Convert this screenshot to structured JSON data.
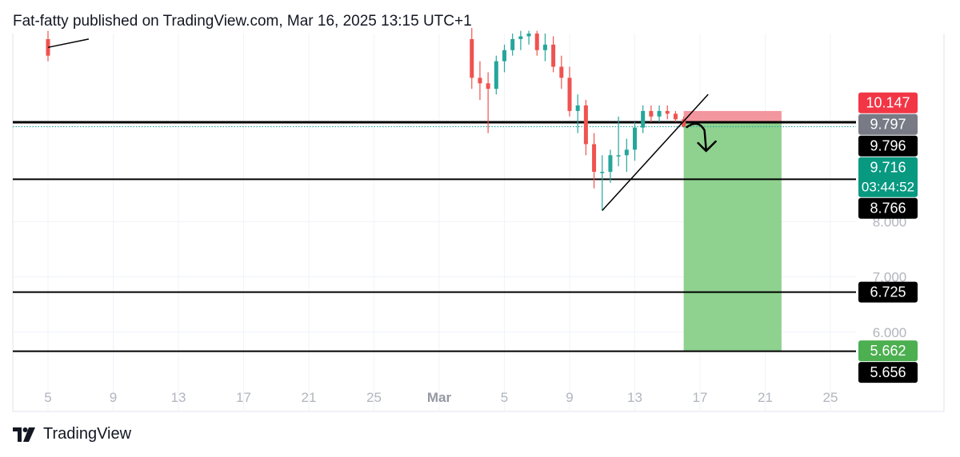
{
  "header": {
    "text": "Fat-fatty published on TradingView.com, Mar 16, 2025 13:15 UTC+1"
  },
  "footer": {
    "brand": "TradingView",
    "logo_icon": "tradingview-logo-icon"
  },
  "colors": {
    "up": "#26a69a",
    "down": "#ef5350",
    "profit_zone": "#8fd18f",
    "stop_zone": "#f28b94",
    "label_dark": "#000000",
    "label_red": "#f23645",
    "label_gray": "#787b86",
    "label_teal": "#089981",
    "label_green": "#4caf50",
    "axis_text": "#b2b5be"
  },
  "chart_data": {
    "type": "candlestick",
    "x_axis": {
      "tick_labels": [
        "5",
        "9",
        "13",
        "17",
        "21",
        "25",
        "Mar",
        "5",
        "9",
        "13",
        "17",
        "21",
        "25"
      ],
      "bold_labels": [
        "Mar"
      ],
      "start": "2025-02-05",
      "end": "2025-03-25"
    },
    "y_axis": {
      "tick_labels": [
        "8.000",
        "7.000",
        "6.000"
      ],
      "ylim": [
        5.0,
        11.4
      ],
      "grid": true
    },
    "price_labels": [
      {
        "value": "10.147",
        "style": "red"
      },
      {
        "value": "9.797",
        "style": "gray"
      },
      {
        "value": "9.796",
        "style": "dark"
      },
      {
        "value": "9.716",
        "sub": "03:44:52",
        "style": "teal"
      },
      {
        "value": "8.766",
        "style": "dark"
      },
      {
        "value": "6.725",
        "style": "dark"
      },
      {
        "value": "5.662",
        "style": "green"
      },
      {
        "value": "5.656",
        "style": "dark"
      }
    ],
    "horizontal_lines": [
      9.796,
      8.766,
      6.725,
      5.656
    ],
    "current_price": 9.716,
    "candles": [
      {
        "t": "2025-02-05",
        "o": 11.3,
        "h": 11.45,
        "l": 10.9,
        "c": 11.0
      },
      {
        "t": "2025-03-03",
        "o": 11.3,
        "h": 11.5,
        "l": 10.4,
        "c": 10.6
      },
      {
        "t": "2025-03-03T12",
        "o": 10.6,
        "h": 10.9,
        "l": 10.2,
        "c": 10.5
      },
      {
        "t": "2025-03-04",
        "o": 10.5,
        "h": 10.7,
        "l": 9.6,
        "c": 10.4
      },
      {
        "t": "2025-03-04T12",
        "o": 10.4,
        "h": 11.0,
        "l": 10.3,
        "c": 10.9
      },
      {
        "t": "2025-03-05",
        "o": 10.9,
        "h": 11.2,
        "l": 10.7,
        "c": 11.1
      },
      {
        "t": "2025-03-05T12",
        "o": 11.1,
        "h": 11.4,
        "l": 11.0,
        "c": 11.3
      },
      {
        "t": "2025-03-06",
        "o": 11.3,
        "h": 11.45,
        "l": 11.1,
        "c": 11.35
      },
      {
        "t": "2025-03-06T12",
        "o": 11.35,
        "h": 11.45,
        "l": 11.2,
        "c": 11.4
      },
      {
        "t": "2025-03-07",
        "o": 11.4,
        "h": 11.45,
        "l": 11.0,
        "c": 11.1
      },
      {
        "t": "2025-03-07T12",
        "o": 11.1,
        "h": 11.4,
        "l": 10.9,
        "c": 11.2
      },
      {
        "t": "2025-03-08",
        "o": 11.2,
        "h": 11.35,
        "l": 10.7,
        "c": 10.8
      },
      {
        "t": "2025-03-08T12",
        "o": 10.8,
        "h": 11.0,
        "l": 10.4,
        "c": 10.6
      },
      {
        "t": "2025-03-09",
        "o": 10.6,
        "h": 10.8,
        "l": 9.9,
        "c": 10.0
      },
      {
        "t": "2025-03-09T12",
        "o": 10.0,
        "h": 10.3,
        "l": 9.6,
        "c": 10.1
      },
      {
        "t": "2025-03-10",
        "o": 10.1,
        "h": 10.2,
        "l": 9.2,
        "c": 9.4
      },
      {
        "t": "2025-03-10T12",
        "o": 9.4,
        "h": 9.6,
        "l": 8.6,
        "c": 8.9
      },
      {
        "t": "2025-03-11",
        "o": 8.9,
        "h": 9.2,
        "l": 8.2,
        "c": 8.9
      },
      {
        "t": "2025-03-11T12",
        "o": 8.9,
        "h": 9.3,
        "l": 8.7,
        "c": 9.2
      },
      {
        "t": "2025-03-12",
        "o": 9.2,
        "h": 9.9,
        "l": 9.0,
        "c": 9.2
      },
      {
        "t": "2025-03-12T12",
        "o": 9.2,
        "h": 9.5,
        "l": 8.9,
        "c": 9.3
      },
      {
        "t": "2025-03-13",
        "o": 9.3,
        "h": 9.8,
        "l": 9.1,
        "c": 9.7
      },
      {
        "t": "2025-03-13T12",
        "o": 9.7,
        "h": 10.1,
        "l": 9.6,
        "c": 10.0
      },
      {
        "t": "2025-03-14",
        "o": 10.0,
        "h": 10.1,
        "l": 9.8,
        "c": 9.9
      },
      {
        "t": "2025-03-14T12",
        "o": 9.9,
        "h": 10.1,
        "l": 9.8,
        "c": 10.0
      },
      {
        "t": "2025-03-15",
        "o": 10.0,
        "h": 10.1,
        "l": 9.85,
        "c": 9.95
      },
      {
        "t": "2025-03-15T12",
        "o": 9.95,
        "h": 10.0,
        "l": 9.8,
        "c": 9.85
      },
      {
        "t": "2025-03-16",
        "o": 9.85,
        "h": 9.9,
        "l": 9.7,
        "c": 9.72
      }
    ],
    "trendlines": [
      {
        "from": {
          "t": "2025-02-05",
          "p": 11.15
        },
        "to": {
          "t": "2025-02-07T12",
          "p": 11.3
        }
      },
      {
        "from": {
          "t": "2025-03-11",
          "p": 8.2
        },
        "to": {
          "t": "2025-03-17T12",
          "p": 10.3
        }
      }
    ],
    "short_position": {
      "entry": 9.796,
      "stop": 10.0,
      "target": 5.662,
      "from": "2025-03-16",
      "to": "2025-03-22"
    },
    "arrow": {
      "direction": "down"
    }
  }
}
